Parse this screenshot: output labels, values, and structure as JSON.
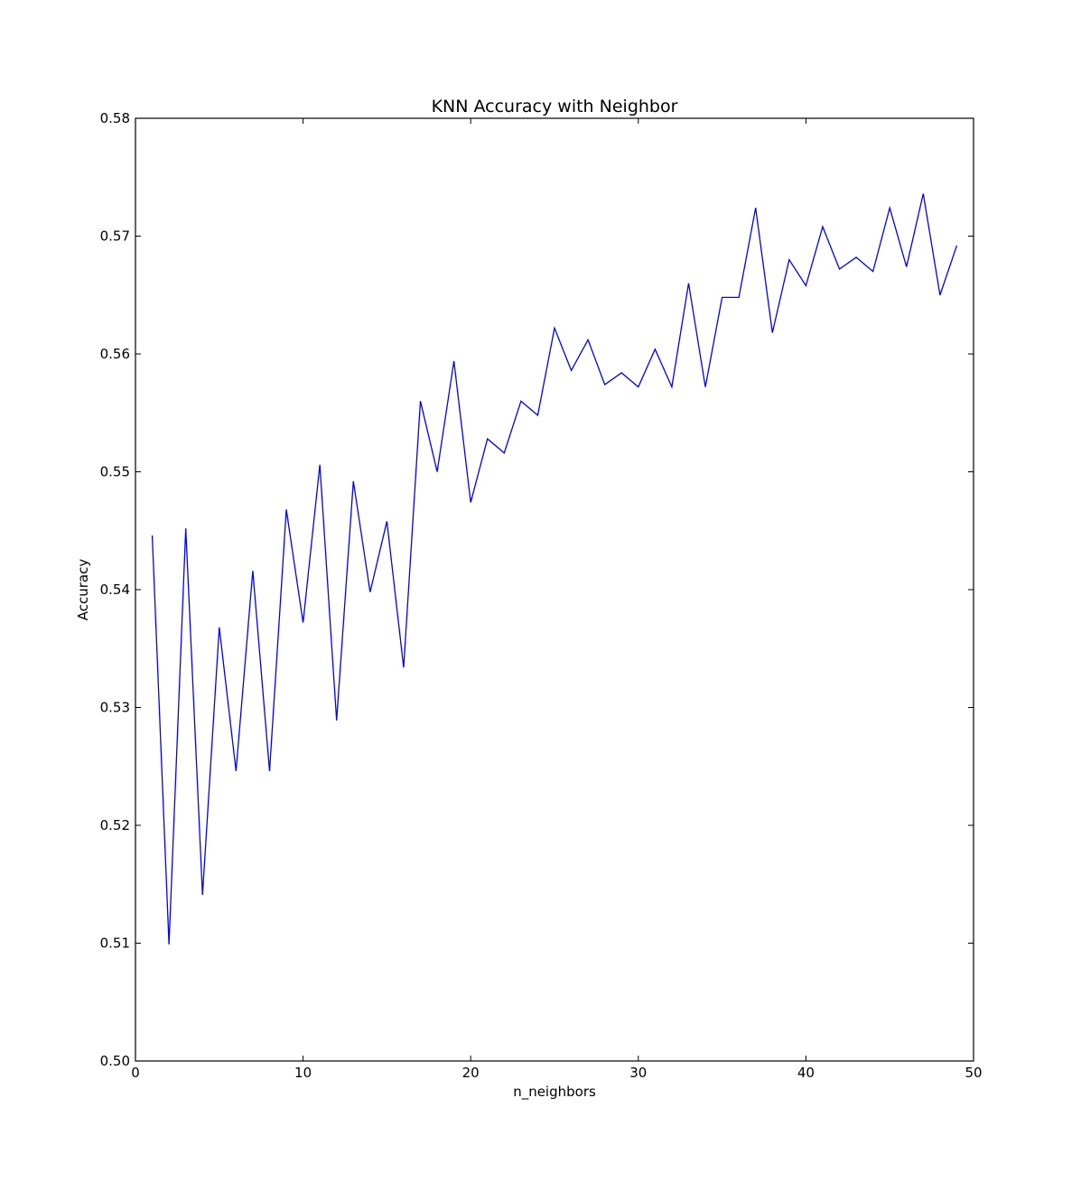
{
  "chart_data": {
    "type": "line",
    "title": "KNN Accuracy with Neighbor",
    "xlabel": "n_neighbors",
    "ylabel": "Accuracy",
    "xlim": [
      0,
      50
    ],
    "ylim": [
      0.5,
      0.58
    ],
    "grid": false,
    "line_color": "#0000ff",
    "x_ticks": [
      0,
      10,
      20,
      30,
      40,
      50
    ],
    "x_tick_labels": [
      "0",
      "10",
      "20",
      "30",
      "40",
      "50"
    ],
    "y_ticks": [
      0.5,
      0.51,
      0.52,
      0.53,
      0.54,
      0.55,
      0.56,
      0.57,
      0.58
    ],
    "y_tick_labels": [
      "0.50",
      "0.51",
      "0.52",
      "0.53",
      "0.54",
      "0.55",
      "0.56",
      "0.57",
      "0.58"
    ],
    "series": [
      {
        "x": [
          1,
          2,
          3,
          4,
          5,
          6,
          7,
          8,
          9,
          10,
          11,
          12,
          13,
          14,
          15,
          16,
          17,
          18,
          19,
          20,
          21,
          22,
          23,
          24,
          25,
          26,
          27,
          28,
          29,
          30,
          31,
          32,
          33,
          34,
          35,
          36,
          37,
          38,
          39,
          40,
          41,
          42,
          43,
          44,
          45,
          46,
          47,
          48,
          49
        ],
        "values": [
          0.5446,
          0.5099,
          0.5452,
          0.5141,
          0.5368,
          0.5246,
          0.5416,
          0.5246,
          0.5468,
          0.5372,
          0.5506,
          0.5289,
          0.5492,
          0.5398,
          0.5458,
          0.5334,
          0.556,
          0.55,
          0.5594,
          0.5474,
          0.5528,
          0.5516,
          0.556,
          0.5548,
          0.5622,
          0.5586,
          0.5612,
          0.5574,
          0.5584,
          0.5572,
          0.5604,
          0.5572,
          0.566,
          0.5572,
          0.5648,
          0.5648,
          0.5724,
          0.5618,
          0.568,
          0.5658,
          0.5708,
          0.5672,
          0.5682,
          0.567,
          0.5724,
          0.5674,
          0.5736,
          0.565,
          0.5692
        ]
      }
    ]
  }
}
